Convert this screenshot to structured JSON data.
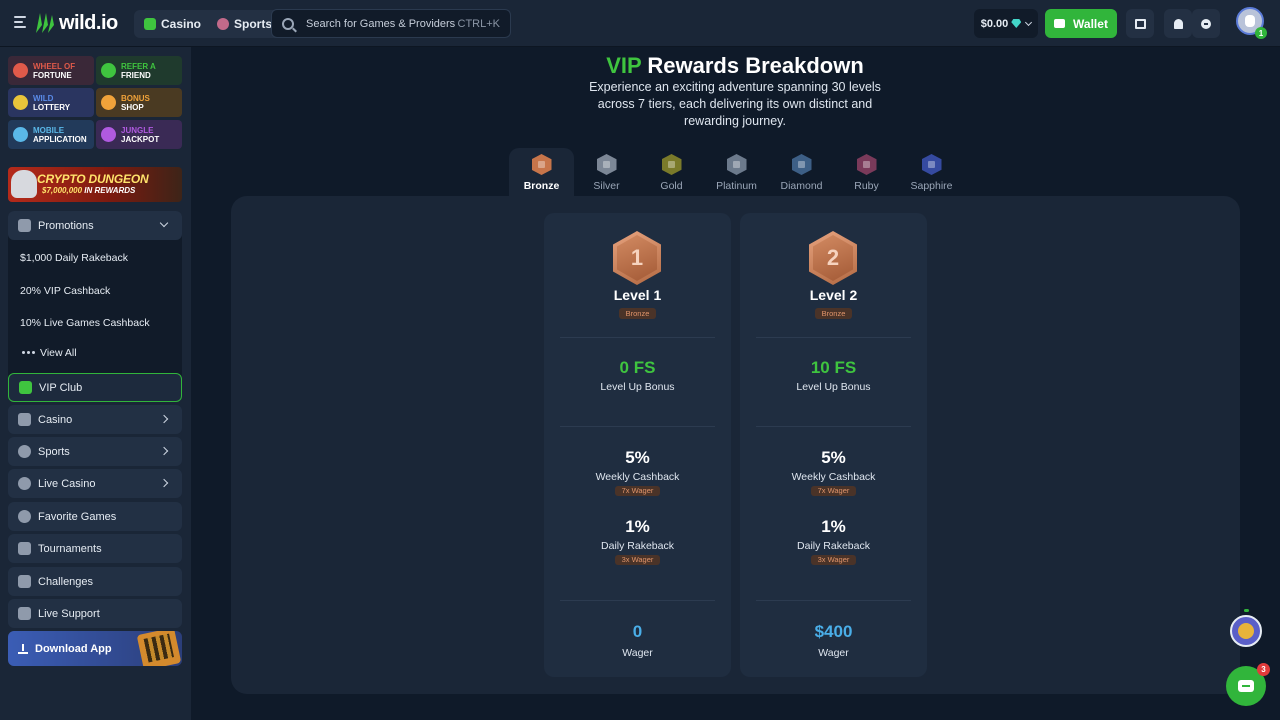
{
  "header": {
    "logo": "wild.io",
    "nav": [
      {
        "label": "Casino",
        "icon": "casino-icon"
      },
      {
        "label": "Sports",
        "icon": "sports-icon"
      }
    ],
    "search_placeholder": "Search for Games & Providers",
    "search_shortcut": "CTRL+K",
    "balance": "$0.00",
    "wallet_label": "Wallet",
    "avatar_badge": "1"
  },
  "sidebar": {
    "promo_tiles": [
      {
        "line1": "Wheel of",
        "line2": "Fortune",
        "icon": "wheel-icon",
        "color": "#e05a4a",
        "bg": "#3a2838"
      },
      {
        "line1": "Refer a",
        "line2": "Friend",
        "icon": "refer-icon",
        "color": "#3fc43f",
        "bg": "#1f3a2d"
      },
      {
        "line1": "Wild",
        "line2": "Lottery",
        "icon": "lottery-icon",
        "color": "#5a8be8",
        "bg": "#2a3560"
      },
      {
        "line1": "Bonus",
        "line2": "Shop",
        "icon": "shop-icon",
        "color": "#f0a23a",
        "bg": "#4a3a22"
      },
      {
        "line1": "Mobile",
        "line2": "Application",
        "icon": "mobile-icon",
        "color": "#5ab8e8",
        "bg": "#223a5a"
      },
      {
        "line1": "Jungle",
        "line2": "Jackpot",
        "icon": "jackpot-icon",
        "color": "#b05ae0",
        "bg": "#3a2a55"
      }
    ],
    "banner_title": "CRYPTO DUNGEON",
    "banner_amount": "$7,000,000",
    "banner_suffix": "IN REWARDS",
    "promotions_label": "Promotions",
    "promotions_items": [
      "$1,000 Daily Rakeback",
      "20% VIP Cashback",
      "10% Live Games Cashback"
    ],
    "view_all": "View All",
    "vip_club": "VIP Club",
    "casino": "Casino",
    "sports": "Sports",
    "live_casino": "Live Casino",
    "favorite_games": "Favorite Games",
    "tournaments": "Tournaments",
    "challenges": "Challenges",
    "live_support": "Live Support",
    "download_app": "Download App"
  },
  "main": {
    "title_accent": "VIP",
    "title_rest": " Rewards Breakdown",
    "subtitle": "Experience an exciting adventure spanning 30 levels across 7 tiers, each delivering its own distinct and rewarding journey.",
    "tiers": [
      {
        "label": "Bronze",
        "color": "#c7754a",
        "active": true
      },
      {
        "label": "Silver",
        "color": "#7c8796",
        "active": false
      },
      {
        "label": "Gold",
        "color": "#7a7a2a",
        "active": false
      },
      {
        "label": "Platinum",
        "color": "#6c7a8c",
        "active": false
      },
      {
        "label": "Diamond",
        "color": "#3d5f86",
        "active": false
      },
      {
        "label": "Ruby",
        "color": "#7a3a5a",
        "active": false
      },
      {
        "label": "Sapphire",
        "color": "#354aa0",
        "active": false
      }
    ],
    "cards": [
      {
        "number": "1",
        "level": "Level 1",
        "tier": "Bronze",
        "bonus": "0 FS",
        "bonus_label": "Level Up Bonus",
        "cashback": "5%",
        "cashback_label": "Weekly Cashback",
        "cashback_wager": "7x Wager",
        "rakeback": "1%",
        "rakeback_label": "Daily Rakeback",
        "rakeback_wager": "3x Wager",
        "wager": "0",
        "wager_label": "Wager"
      },
      {
        "number": "2",
        "level": "Level 2",
        "tier": "Bronze",
        "bonus": "10 FS",
        "bonus_label": "Level Up Bonus",
        "cashback": "5%",
        "cashback_label": "Weekly Cashback",
        "cashback_wager": "7x Wager",
        "rakeback": "1%",
        "rakeback_label": "Daily Rakeback",
        "rakeback_wager": "3x Wager",
        "wager": "$400",
        "wager_label": "Wager"
      }
    ]
  },
  "chat_badge": "3"
}
